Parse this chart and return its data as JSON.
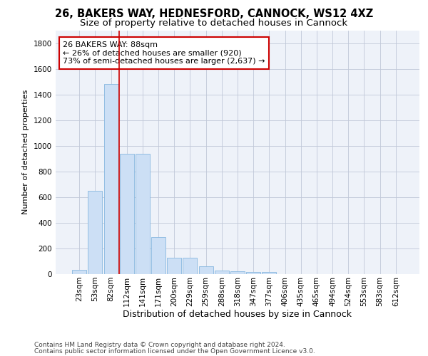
{
  "title_line1": "26, BAKERS WAY, HEDNESFORD, CANNOCK, WS12 4XZ",
  "title_line2": "Size of property relative to detached houses in Cannock",
  "xlabel": "Distribution of detached houses by size in Cannock",
  "ylabel": "Number of detached properties",
  "categories": [
    "23sqm",
    "53sqm",
    "82sqm",
    "112sqm",
    "141sqm",
    "171sqm",
    "200sqm",
    "229sqm",
    "259sqm",
    "288sqm",
    "318sqm",
    "347sqm",
    "377sqm",
    "406sqm",
    "435sqm",
    "465sqm",
    "494sqm",
    "524sqm",
    "553sqm",
    "583sqm",
    "612sqm"
  ],
  "values": [
    35,
    650,
    1480,
    935,
    935,
    290,
    125,
    125,
    60,
    25,
    20,
    15,
    15,
    0,
    0,
    0,
    0,
    0,
    0,
    0,
    0
  ],
  "bar_color": "#ccdff5",
  "bar_edge_color": "#88b8e0",
  "bar_linewidth": 0.6,
  "vline_x_idx": 2,
  "vline_color": "#cc0000",
  "vline_linewidth": 1.2,
  "annotation_line1": "26 BAKERS WAY: 88sqm",
  "annotation_line2": "← 26% of detached houses are smaller (920)",
  "annotation_line3": "73% of semi-detached houses are larger (2,637) →",
  "annotation_box_color": "#cc0000",
  "ylim": [
    0,
    1900
  ],
  "yticks": [
    0,
    200,
    400,
    600,
    800,
    1000,
    1200,
    1400,
    1600,
    1800
  ],
  "footer_line1": "Contains HM Land Registry data © Crown copyright and database right 2024.",
  "footer_line2": "Contains public sector information licensed under the Open Government Licence v3.0.",
  "background_color": "#eef2f9",
  "grid_color": "#c0c8d8",
  "title1_fontsize": 10.5,
  "title2_fontsize": 9.5,
  "xlabel_fontsize": 9,
  "ylabel_fontsize": 8,
  "tick_fontsize": 7.5,
  "annotation_fontsize": 8,
  "footer_fontsize": 6.5
}
